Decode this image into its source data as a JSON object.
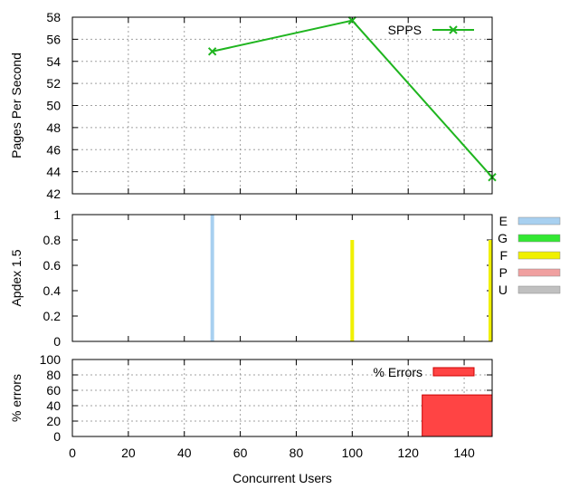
{
  "chart_data": [
    {
      "type": "line",
      "ylabel": "Pages Per Second",
      "xlim": [
        0,
        150
      ],
      "ylim": [
        42,
        58
      ],
      "yticks": [
        42,
        44,
        46,
        48,
        50,
        52,
        54,
        56,
        58
      ],
      "grid": true,
      "legend": "top-right",
      "series": [
        {
          "name": "SPPS",
          "color": "#1fb51f",
          "x": [
            50,
            100,
            150
          ],
          "y": [
            54.9,
            57.7,
            43.5
          ]
        }
      ]
    },
    {
      "type": "bar",
      "ylabel": "Apdex 1.5",
      "xlim": [
        0,
        150
      ],
      "ylim": [
        0,
        1
      ],
      "yticks": [
        0,
        0.2,
        0.4,
        0.6,
        0.8,
        1
      ],
      "ytick_labels": [
        "0",
        "0.2",
        "0.4",
        "0.6",
        "0.8",
        "1"
      ],
      "grid": false,
      "legend": "right",
      "legend_entries": [
        {
          "name": "E",
          "color": "#a8d0f0"
        },
        {
          "name": "G",
          "color": "#33e833"
        },
        {
          "name": "F",
          "color": "#f0f000"
        },
        {
          "name": "P",
          "color": "#f0a0a0"
        },
        {
          "name": "U",
          "color": "#c0c0c0"
        }
      ],
      "bars": [
        {
          "x": 50,
          "value": 1.0,
          "rating": "E",
          "color": "#a8d0f0"
        },
        {
          "x": 100,
          "value": 0.8,
          "rating": "F",
          "color": "#f0f000"
        },
        {
          "x": 150,
          "value": 0.8,
          "rating": "F",
          "color": "#f0f000"
        }
      ]
    },
    {
      "type": "bar",
      "xlabel": "Concurrent Users",
      "ylabel": "% errors",
      "xlim": [
        0,
        150
      ],
      "ylim": [
        0,
        100
      ],
      "xticks": [
        0,
        20,
        40,
        60,
        80,
        100,
        120,
        140
      ],
      "yticks": [
        0,
        20,
        40,
        60,
        80,
        100
      ],
      "grid": true,
      "legend": "top-right",
      "series": [
        {
          "name": "% Errors",
          "color": "#ff4444",
          "edge": "#cc0000",
          "bars": [
            {
              "x_start": 125,
              "x_end": 150,
              "value": 54
            }
          ]
        }
      ]
    }
  ]
}
